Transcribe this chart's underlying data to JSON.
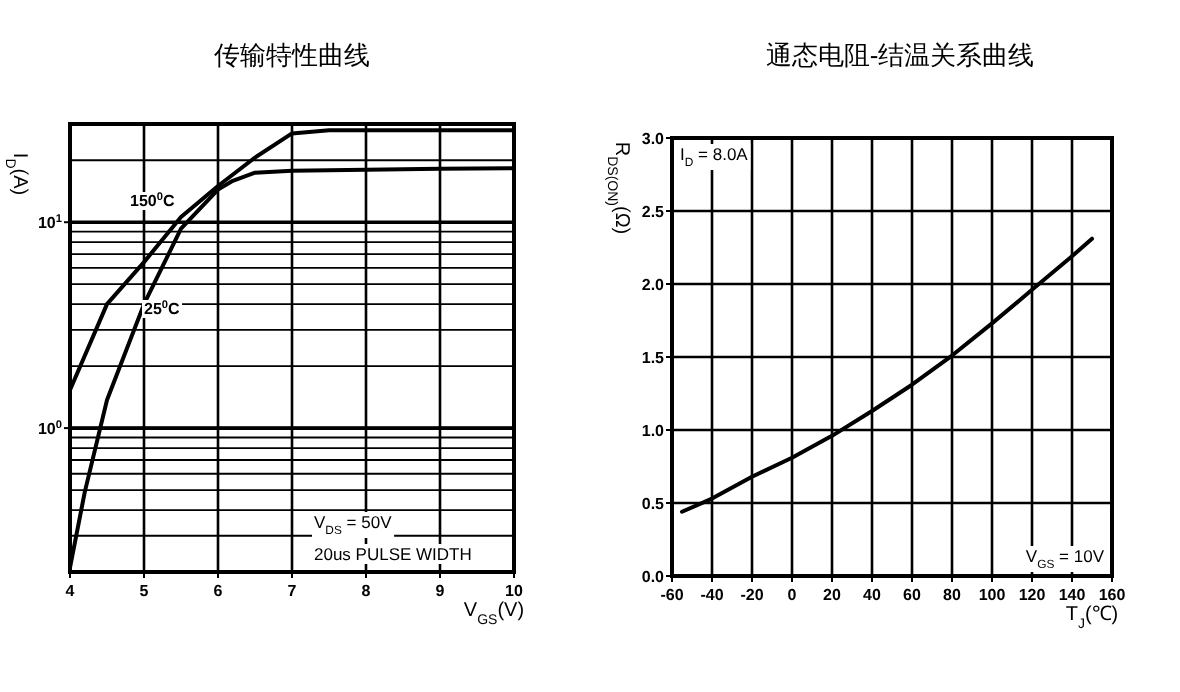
{
  "chart_data": [
    {
      "type": "line",
      "title": "传输特性曲线",
      "xlabel": "V$_{GS}$(V)",
      "ylabel": "I$_{D}$(A)",
      "log": "y",
      "grid": true,
      "xlim": [
        4,
        10
      ],
      "xticks": [
        4,
        5,
        6,
        7,
        8,
        9,
        10
      ],
      "ylim": [
        0.2,
        30
      ],
      "yticks": [
        {
          "value": 1,
          "label": "10$^{0}$"
        },
        {
          "value": 10,
          "label": "10$^{1}$"
        }
      ],
      "series": [
        {
          "color": "#000000",
          "x": [
            4,
            4.5,
            5,
            5.5,
            6,
            6.5,
            7,
            7.5,
            8,
            9,
            10
          ],
          "values": [
            1.53,
            4.0,
            6.4,
            10.6,
            15,
            20.6,
            27,
            28,
            28,
            28,
            28
          ]
        },
        {
          "color": "#000000",
          "x": [
            4,
            4.2,
            4.5,
            5,
            5.5,
            6,
            6.2,
            6.5,
            7,
            8,
            9,
            10
          ],
          "values": [
            0.21,
            0.49,
            1.37,
            4.0,
            9.3,
            14.4,
            15.9,
            17.4,
            17.8,
            18,
            18.2,
            18.3
          ]
        }
      ],
      "annotations": [
        "150$^{0}$C",
        "25$^{0}$C",
        "V$_{DS}$ = 50V",
        "20us PULSE WIDTH"
      ]
    },
    {
      "type": "line",
      "title": "通态电阻-结温关系曲线",
      "xlabel": "T$_{J}$(℃)",
      "ylabel": "R$_{DS(ON)}$(Ω)",
      "grid": true,
      "xlim": [
        -60,
        160
      ],
      "xticks": [
        -60,
        -40,
        -20,
        0,
        20,
        40,
        60,
        80,
        100,
        120,
        140,
        160
      ],
      "ylim": [
        0,
        3
      ],
      "yticks": [
        {
          "value": 0,
          "label": "0.0"
        },
        {
          "value": 0.5,
          "label": "0.5"
        },
        {
          "value": 1,
          "label": "1.0"
        },
        {
          "value": 1.5,
          "label": "1.5"
        },
        {
          "value": 2,
          "label": "2.0"
        },
        {
          "value": 2.5,
          "label": "2.5"
        },
        {
          "value": 3,
          "label": "3.0"
        }
      ],
      "series": [
        {
          "color": "#000000",
          "x": [
            -55,
            -40,
            -20,
            0,
            20,
            40,
            60,
            80,
            100,
            120,
            140,
            150
          ],
          "values": [
            0.44,
            0.53,
            0.68,
            0.81,
            0.96,
            1.13,
            1.31,
            1.51,
            1.73,
            1.96,
            2.19,
            2.31
          ]
        }
      ],
      "annotations": [
        "I$_{D}$ = 8.0A",
        "V$_{GS}$ = 10V"
      ]
    }
  ]
}
